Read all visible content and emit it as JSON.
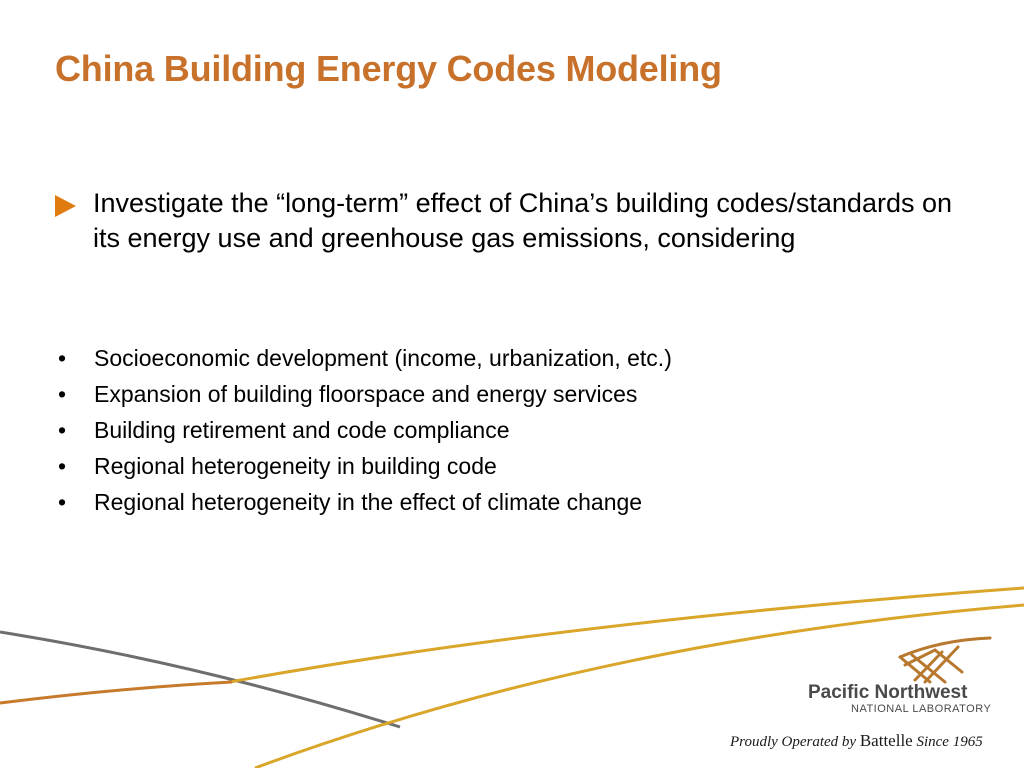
{
  "slide": {
    "title": "China Building Energy Codes Modeling",
    "main_point": "Investigate the “long-term” effect of China’s building codes/standards on its energy use and greenhouse gas emissions, considering",
    "bullets": [
      "Socioeconomic development (income, urbanization, etc.)",
      "Expansion of building floorspace and energy services",
      "Building retirement and code compliance",
      "Regional heterogeneity in building code",
      "Regional heterogeneity in the effect of climate change"
    ],
    "bullet_symbol": "•"
  },
  "branding": {
    "logo_line1": "Pacific Northwest",
    "logo_line2": "NATIONAL LABORATORY",
    "tagline_prefix": "Proudly Operated by",
    "tagline_brand": "Battelle",
    "tagline_suffix": "Since 1965"
  },
  "colors": {
    "title": "#c8712a",
    "arrow": "#e07b10",
    "swoosh_gold": "#d9a62a",
    "swoosh_gray": "#6e6e6e",
    "swoosh_orange": "#c77a2c",
    "logo_mark": "#b8782e"
  }
}
